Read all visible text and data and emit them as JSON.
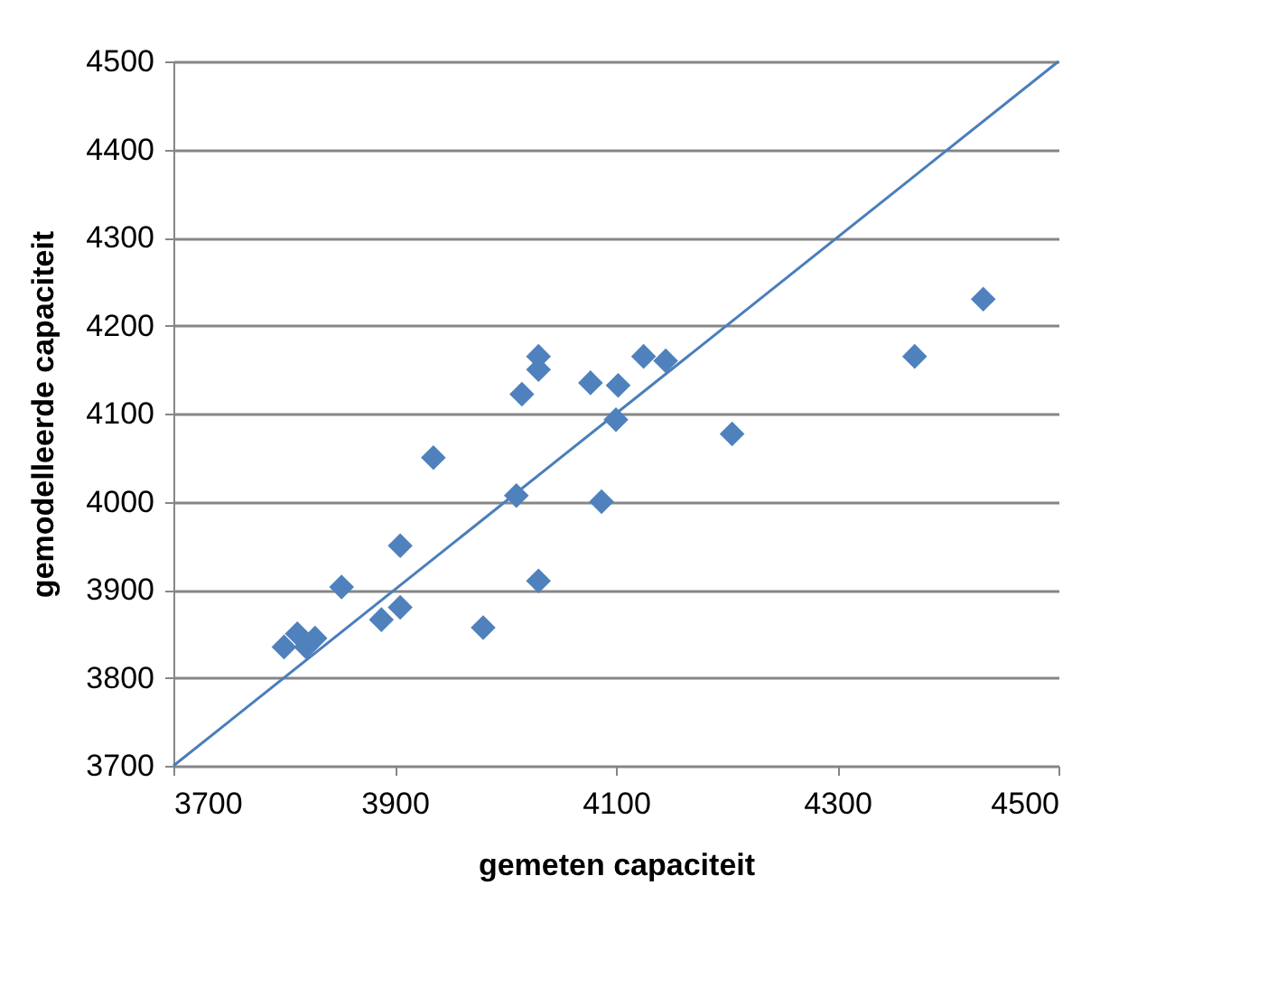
{
  "chart_data": {
    "type": "scatter",
    "xlabel": "gemeten capaciteit",
    "ylabel": "gemodelleerde capaciteit",
    "xlim": [
      3700,
      4500
    ],
    "xticks": [
      3700,
      3900,
      4100,
      4300,
      4500
    ],
    "ylim": [
      3700,
      4500
    ],
    "yticks": [
      3700,
      3800,
      3900,
      4000,
      4100,
      4200,
      4300,
      4400,
      4500
    ],
    "grid": "y",
    "series": [
      {
        "marker": "diamond",
        "color": "#4f81bd",
        "x": [
          3800,
          3812,
          3820,
          3828,
          3852,
          3888,
          3905,
          3905,
          3935,
          3980,
          4010,
          4015,
          4030,
          4030,
          4030,
          4077,
          4087,
          4100,
          4102,
          4125,
          4145,
          4205,
          4370,
          4432
        ],
        "values": [
          3835,
          3850,
          3835,
          3845,
          3903,
          3866,
          3880,
          3950,
          4050,
          3857,
          4007,
          4122,
          4165,
          4150,
          3910,
          4135,
          4000,
          4093,
          4132,
          4165,
          4160,
          4077,
          4165,
          4230
        ]
      },
      {
        "type": "line",
        "color": "#4a7ebb",
        "x": [
          3700,
          4500
        ],
        "values": [
          3700,
          4500
        ]
      }
    ]
  }
}
